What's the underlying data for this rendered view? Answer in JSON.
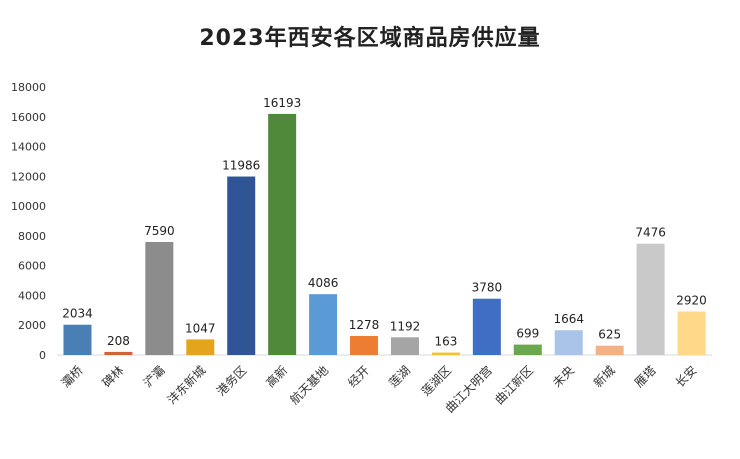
{
  "chart_data": {
    "type": "bar",
    "title": "2023年西安各区域商品房供应量",
    "xlabel": "",
    "ylabel": "",
    "ylim": [
      0,
      18000
    ],
    "yticks": [
      0,
      2000,
      4000,
      6000,
      8000,
      10000,
      12000,
      14000,
      16000,
      18000
    ],
    "grid": false,
    "legend": "none",
    "categories": [
      "灞桥",
      "碑林",
      "浐灞",
      "沣东新城",
      "港务区",
      "高新",
      "航天基地",
      "经开",
      "莲湖",
      "莲湖区",
      "曲江大明宫",
      "曲江新区",
      "未央",
      "新城",
      "雁塔",
      "长安"
    ],
    "values": [
      2034,
      208,
      7590,
      1047,
      11986,
      16193,
      4086,
      1278,
      1192,
      163,
      3780,
      699,
      1664,
      625,
      7476,
      2920
    ],
    "colors": [
      "#4a7fb5",
      "#d2613a",
      "#8c8c8c",
      "#e3a51b",
      "#2f5596",
      "#4f8a3b",
      "#5b9bd5",
      "#ed7d31",
      "#a5a5a5",
      "#f2c230",
      "#3e6fc4",
      "#6aa84f",
      "#a9c4e8",
      "#f4b183",
      "#c9c9c9",
      "#ffd88a"
    ]
  }
}
